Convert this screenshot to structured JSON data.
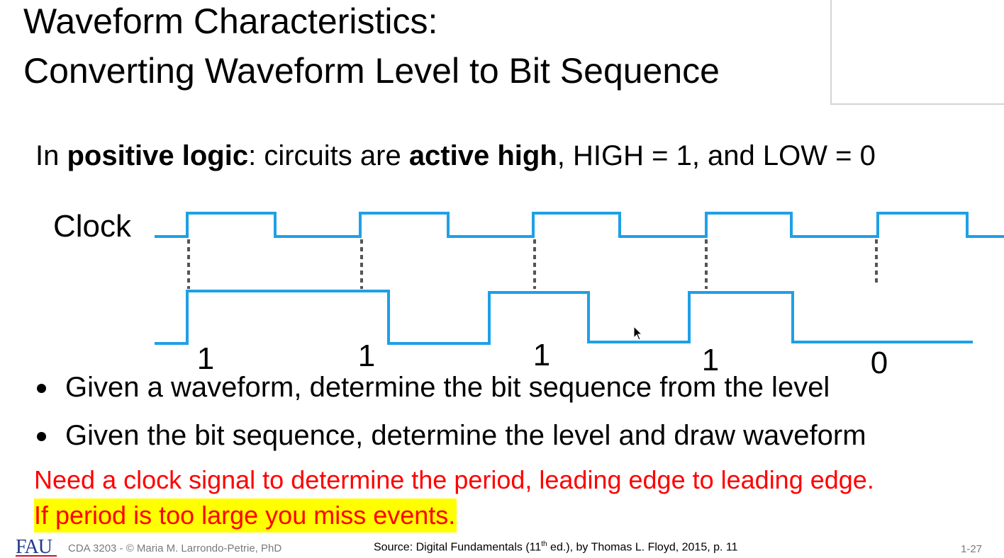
{
  "title": {
    "line1": "Waveform Characteristics:",
    "line2": "Converting Waveform Level to Bit Sequence"
  },
  "intro": {
    "prefix": "In ",
    "bold1": "positive logic",
    "mid": ": circuits are ",
    "bold2": "active high",
    "suffix": ", HIGH = 1, and LOW = 0"
  },
  "diagram": {
    "clock_label": "Clock",
    "bits": [
      "1",
      "1",
      "1",
      "1",
      "0"
    ],
    "clock_color": "#1ea0e6",
    "data_color": "#1ea0e6"
  },
  "bullets": [
    "Given a waveform, determine the bit sequence from the level",
    "Given the bit sequence, determine the level and draw waveform"
  ],
  "notes": {
    "line1": "Need a clock signal to determine the period, leading edge to leading edge.",
    "line2": "If period is too large you miss events."
  },
  "footer": {
    "logo": "FAU",
    "course": "CDA 3203 - © Maria M. Larrondo-Petrie, PhD",
    "source_prefix": "Source: Digital Fundamentals (11",
    "source_sup": "th",
    "source_suffix": " ed.), by Thomas L. Floyd, 2015, p. 11",
    "page": "1-27"
  }
}
